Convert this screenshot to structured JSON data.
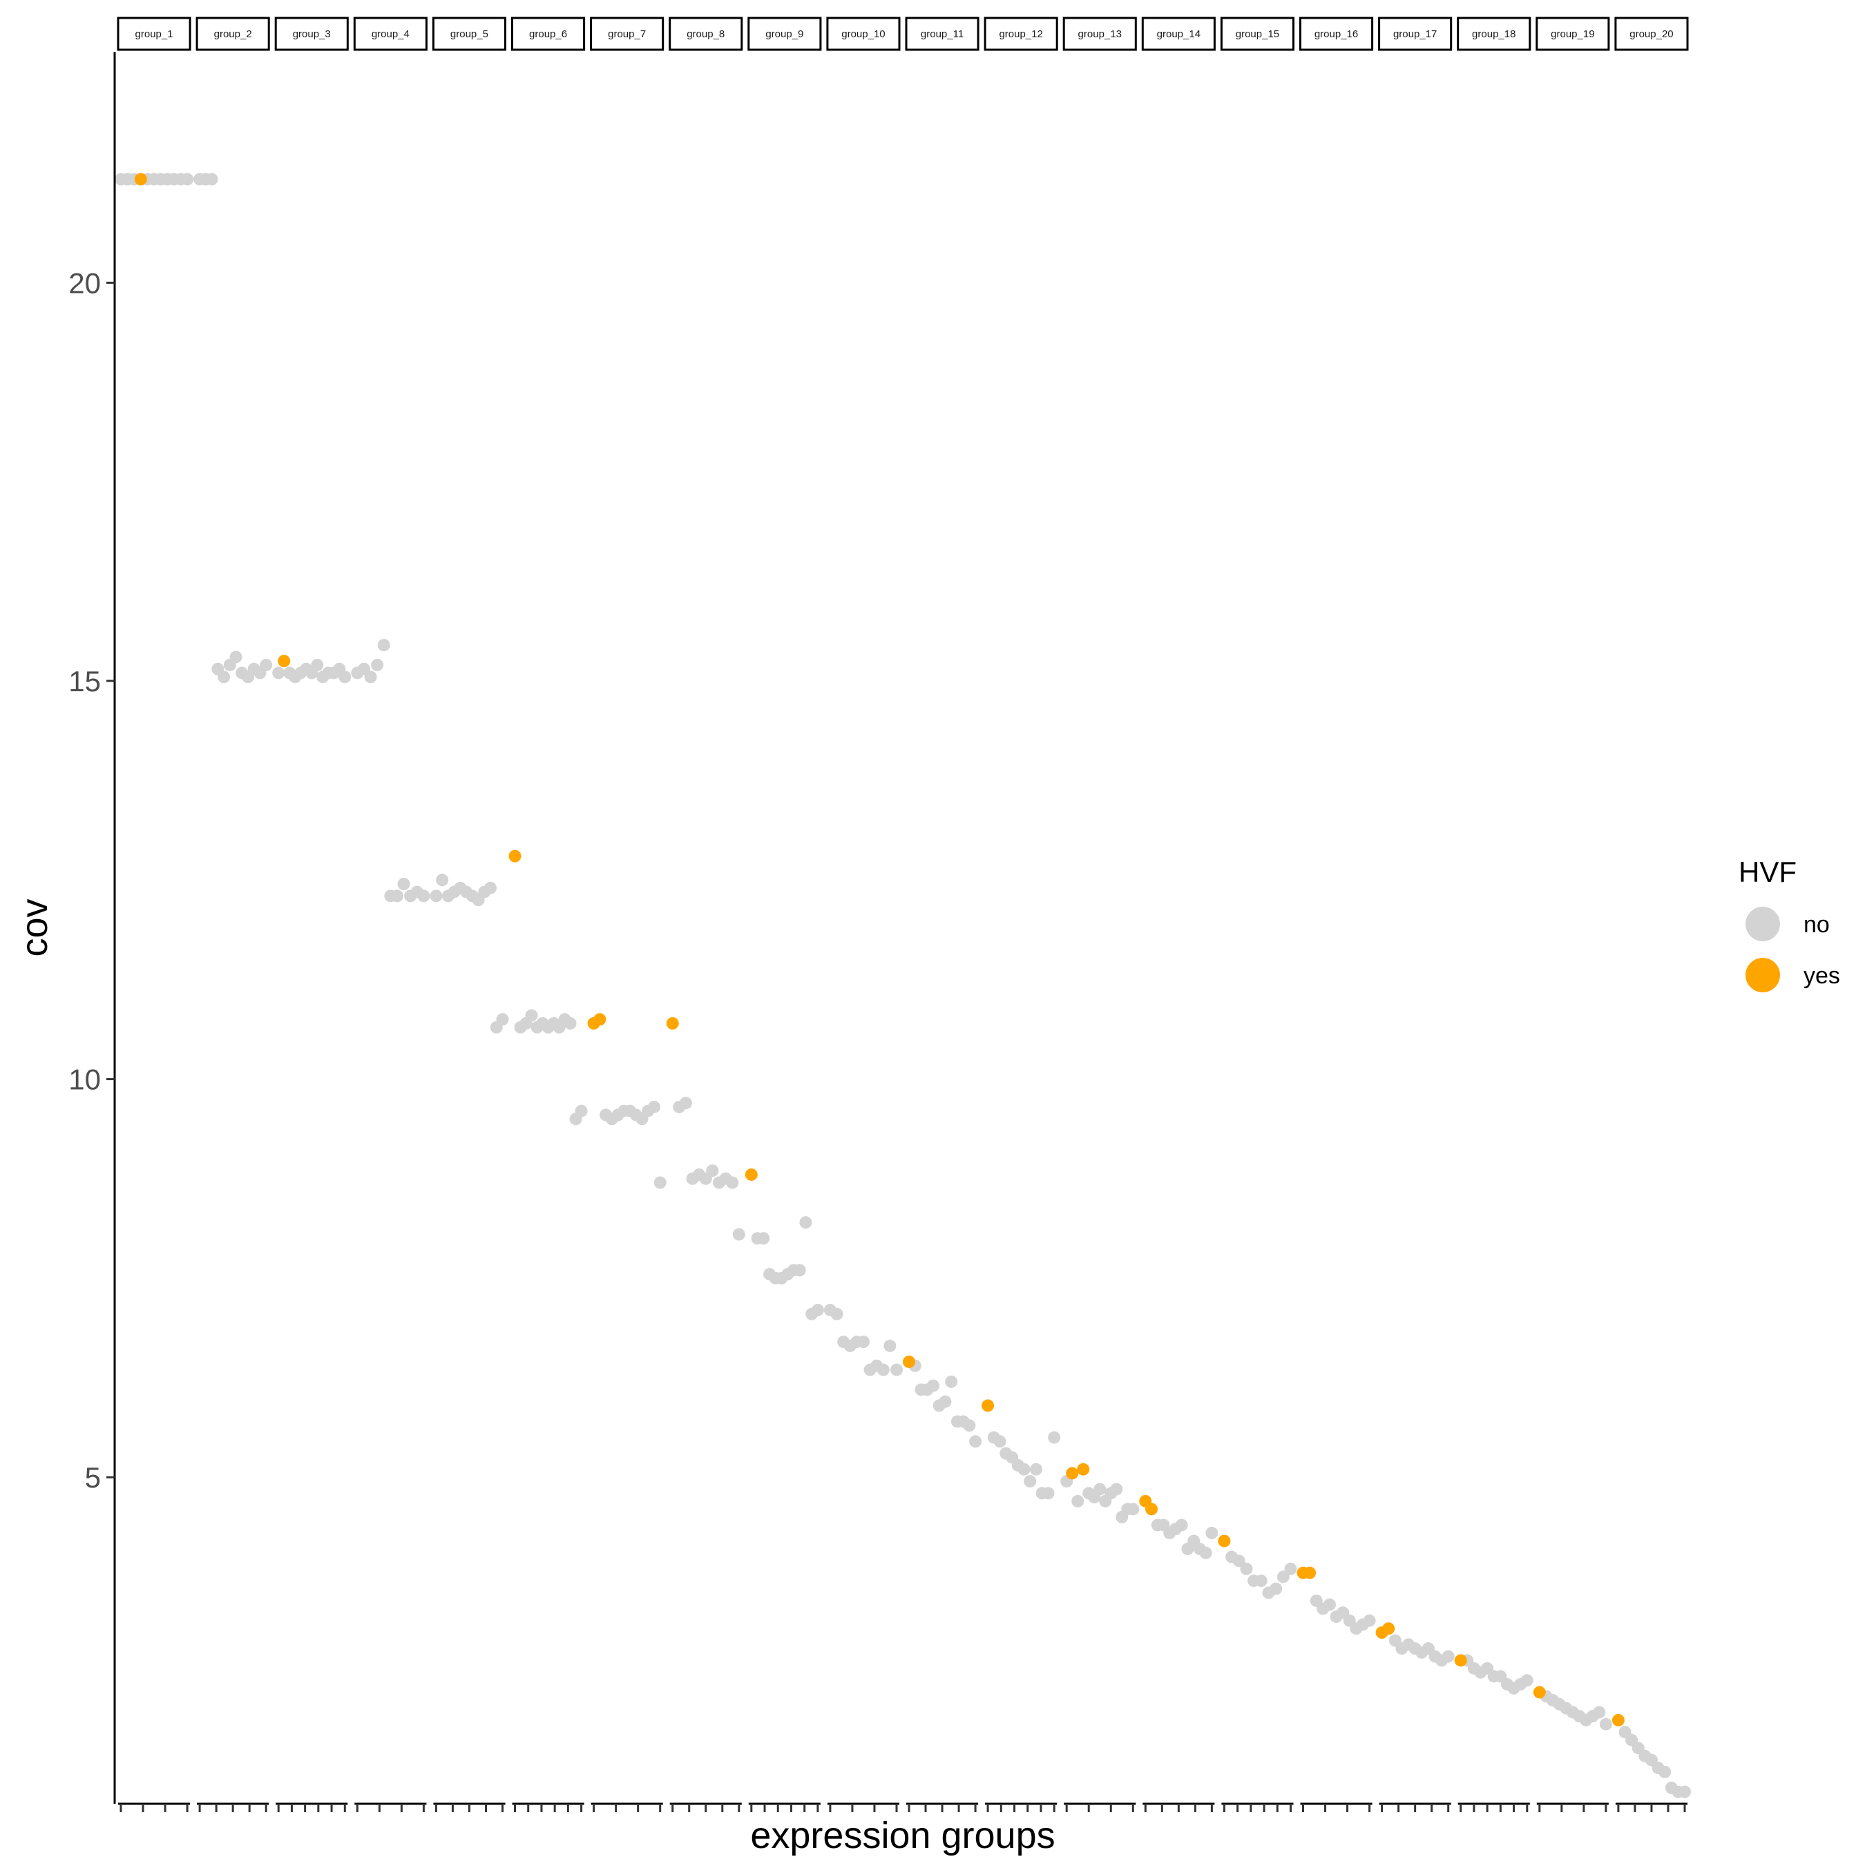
{
  "chart_data": {
    "type": "scatter",
    "xlabel": "expression groups",
    "ylabel": "cov",
    "ylim": [
      0.9,
      22.9
    ],
    "yticks": [
      5,
      10,
      15,
      20
    ],
    "grid": false,
    "legend": {
      "title": "HVF",
      "position": "right",
      "entries": [
        {
          "label": "no",
          "color": "#d3d3d3"
        },
        {
          "label": "yes",
          "color": "#ffa500"
        }
      ]
    },
    "panels": [
      {
        "label": "group_1",
        "no": [
          21.3,
          21.3,
          21.3,
          21.3,
          21.3,
          21.3,
          21.3,
          21.3,
          21.3,
          21.3
        ],
        "yes": [
          {
            "idx": 3,
            "y": 21.3
          }
        ]
      },
      {
        "label": "group_2",
        "no": [
          21.3,
          21.3,
          21.3,
          15.15,
          15.05,
          15.2,
          15.3,
          15.1,
          15.05,
          15.15,
          15.1,
          15.2
        ],
        "yes": []
      },
      {
        "label": "group_3",
        "no": [
          15.1,
          15.1,
          15.05,
          15.1,
          15.15,
          15.1,
          15.2,
          15.05,
          15.1,
          15.1,
          15.15,
          15.05
        ],
        "yes": [
          {
            "idx": 1,
            "y": 15.25
          }
        ]
      },
      {
        "label": "group_4",
        "no": [
          15.1,
          15.15,
          15.05,
          15.2,
          15.45,
          12.3,
          12.3,
          12.45,
          12.3,
          12.35,
          12.3
        ],
        "yes": []
      },
      {
        "label": "group_5",
        "no": [
          12.3,
          12.5,
          12.3,
          12.35,
          12.4,
          12.35,
          12.3,
          12.25,
          12.35,
          12.4,
          10.65,
          10.75
        ],
        "yes": []
      },
      {
        "label": "group_6",
        "no": [
          10.65,
          10.7,
          10.8,
          10.65,
          10.7,
          10.65,
          10.7,
          10.65,
          10.75,
          10.7,
          9.5,
          9.6
        ],
        "yes": [
          {
            "idx": 0,
            "y": 12.8
          }
        ]
      },
      {
        "label": "group_7",
        "no": [
          9.55,
          9.5,
          9.55,
          9.6,
          9.6,
          9.55,
          9.5,
          9.6,
          9.65,
          8.7
        ],
        "yes": [
          {
            "idx": 0,
            "y": 10.7
          },
          {
            "idx": 1,
            "y": 10.75
          }
        ]
      },
      {
        "label": "group_8",
        "no": [
          9.65,
          9.7,
          8.75,
          8.8,
          8.75,
          8.85,
          8.7,
          8.75,
          8.7,
          8.05
        ],
        "yes": [
          {
            "idx": 0,
            "y": 10.7
          }
        ]
      },
      {
        "label": "group_9",
        "no": [
          8.0,
          8.0,
          7.55,
          7.5,
          7.5,
          7.55,
          7.6,
          7.6,
          8.2,
          7.05,
          7.1
        ],
        "yes": [
          {
            "idx": 0,
            "y": 8.8
          }
        ]
      },
      {
        "label": "group_10",
        "no": [
          7.1,
          7.05,
          6.7,
          6.65,
          6.7,
          6.7,
          6.35,
          6.4,
          6.35,
          6.65,
          6.35
        ],
        "yes": []
      },
      {
        "label": "group_11",
        "no": [
          6.4,
          6.1,
          6.1,
          6.15,
          5.9,
          5.95,
          6.2,
          5.7,
          5.7,
          5.65,
          5.45
        ],
        "yes": [
          {
            "idx": 0,
            "y": 6.45
          }
        ]
      },
      {
        "label": "group_12",
        "no": [
          5.5,
          5.45,
          5.3,
          5.25,
          5.15,
          5.1,
          4.95,
          5.1,
          4.8,
          4.8,
          5.5
        ],
        "yes": [
          {
            "idx": 0,
            "y": 5.9
          }
        ]
      },
      {
        "label": "group_13",
        "no": [
          4.95,
          4.7,
          4.8,
          4.75,
          4.85,
          4.7,
          4.8,
          4.85,
          4.5,
          4.6,
          4.6
        ],
        "yes": [
          {
            "idx": 1,
            "y": 5.05
          },
          {
            "idx": 3,
            "y": 5.1
          }
        ]
      },
      {
        "label": "group_14",
        "no": [
          4.4,
          4.4,
          4.3,
          4.35,
          4.4,
          4.1,
          4.2,
          4.1,
          4.05,
          4.3
        ],
        "yes": [
          {
            "idx": 0,
            "y": 4.7
          },
          {
            "idx": 1,
            "y": 4.6
          }
        ]
      },
      {
        "label": "group_15",
        "no": [
          4.0,
          3.95,
          3.85,
          3.7,
          3.7,
          3.55,
          3.6,
          3.75,
          3.85
        ],
        "yes": [
          {
            "idx": 0,
            "y": 4.2
          }
        ]
      },
      {
        "label": "group_16",
        "no": [
          3.45,
          3.35,
          3.4,
          3.25,
          3.3,
          3.2,
          3.1,
          3.15,
          3.2
        ],
        "yes": [
          {
            "idx": 0,
            "y": 3.8
          },
          {
            "idx": 1,
            "y": 3.8
          }
        ]
      },
      {
        "label": "group_17",
        "no": [
          2.95,
          2.85,
          2.9,
          2.85,
          2.8,
          2.85,
          2.75,
          2.7,
          2.75
        ],
        "yes": [
          {
            "idx": 0,
            "y": 3.05
          },
          {
            "idx": 1,
            "y": 3.1
          }
        ]
      },
      {
        "label": "group_18",
        "no": [
          2.7,
          2.6,
          2.55,
          2.6,
          2.5,
          2.5,
          2.4,
          2.35,
          2.4,
          2.45
        ],
        "yes": [
          {
            "idx": 0,
            "y": 2.7
          }
        ]
      },
      {
        "label": "group_19",
        "no": [
          2.25,
          2.2,
          2.15,
          2.1,
          2.05,
          2.0,
          1.95,
          2.0,
          2.05,
          1.9
        ],
        "yes": [
          {
            "idx": 0,
            "y": 2.3
          }
        ]
      },
      {
        "label": "group_20",
        "no": [
          1.8,
          1.7,
          1.6,
          1.5,
          1.45,
          1.35,
          1.3,
          1.1,
          1.05,
          1.05
        ],
        "yes": [
          {
            "idx": 0,
            "y": 1.95
          }
        ]
      }
    ]
  }
}
